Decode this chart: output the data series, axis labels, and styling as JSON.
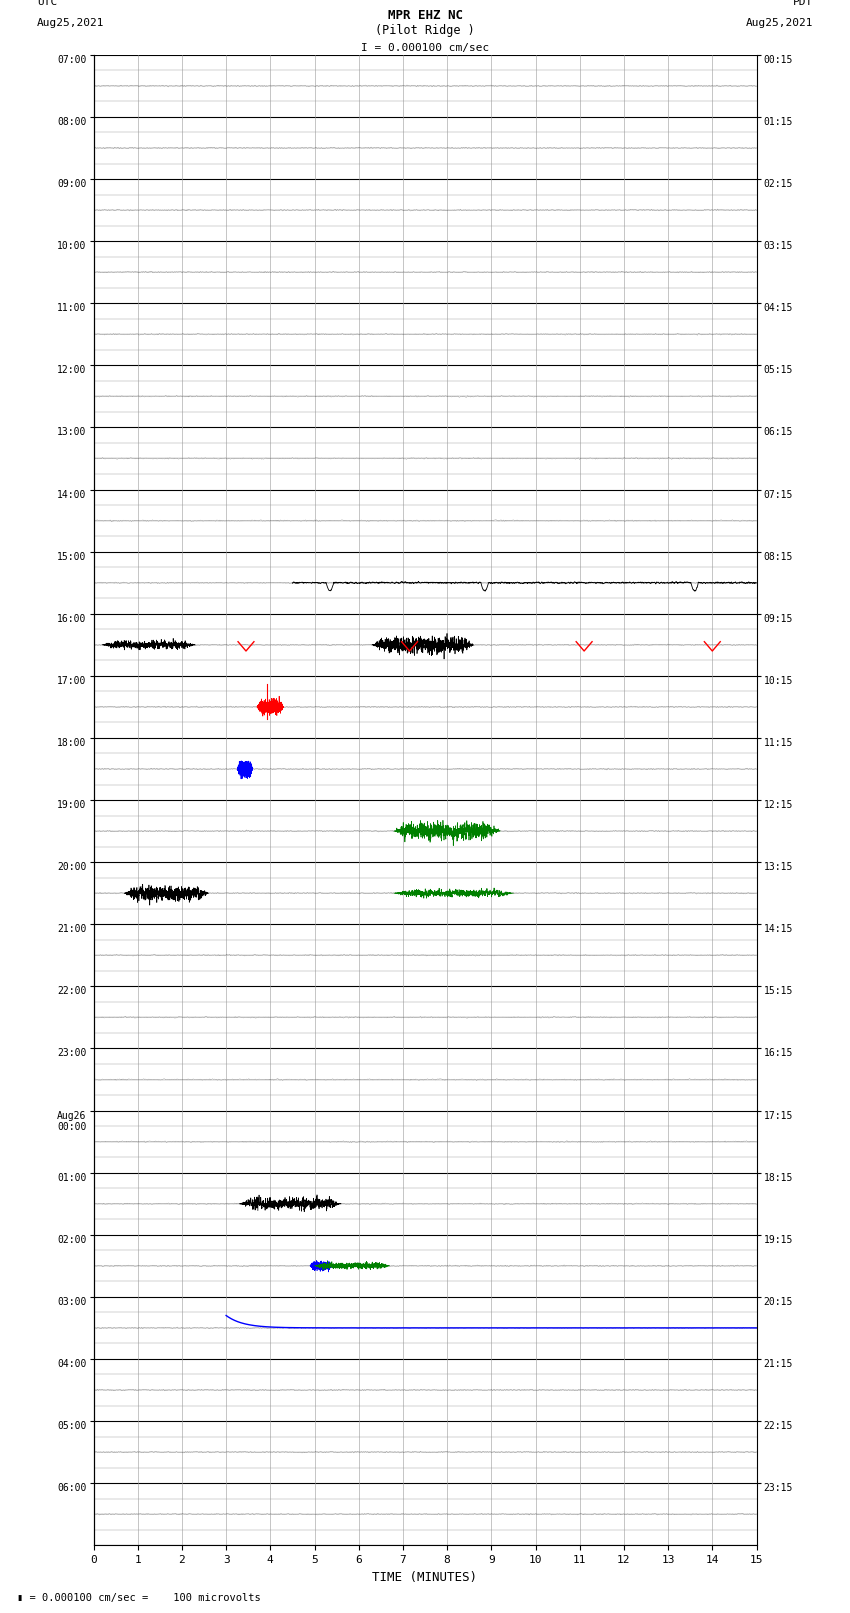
{
  "title_line1": "MPR EHZ NC",
  "title_line2": "(Pilot Ridge )",
  "title_scale": "I = 0.000100 cm/sec",
  "left_label1": "UTC",
  "left_label2": "Aug25,2021",
  "right_label1": "PDT",
  "right_label2": "Aug25,2021",
  "xlabel": "TIME (MINUTES)",
  "bottom_note": " = 0.000100 cm/sec =    100 microvolts",
  "utc_labels": [
    "07:00",
    "08:00",
    "09:00",
    "10:00",
    "11:00",
    "12:00",
    "13:00",
    "14:00",
    "15:00",
    "16:00",
    "17:00",
    "18:00",
    "19:00",
    "20:00",
    "21:00",
    "22:00",
    "23:00",
    "Aug26\n00:00",
    "01:00",
    "02:00",
    "03:00",
    "04:00",
    "05:00",
    "06:00"
  ],
  "pdt_labels": [
    "00:15",
    "01:15",
    "02:15",
    "03:15",
    "04:15",
    "05:15",
    "06:15",
    "07:15",
    "08:15",
    "09:15",
    "10:15",
    "11:15",
    "12:15",
    "13:15",
    "14:15",
    "15:15",
    "16:15",
    "17:15",
    "18:15",
    "19:15",
    "20:15",
    "21:15",
    "22:15",
    "23:15"
  ],
  "n_rows": 24,
  "sub_rows": 4,
  "x_min": 0,
  "x_max": 15,
  "background": "#ffffff",
  "major_grid_color": "#000000",
  "minor_grid_color": "#999999",
  "figsize": [
    8.5,
    16.13
  ],
  "dpi": 100
}
